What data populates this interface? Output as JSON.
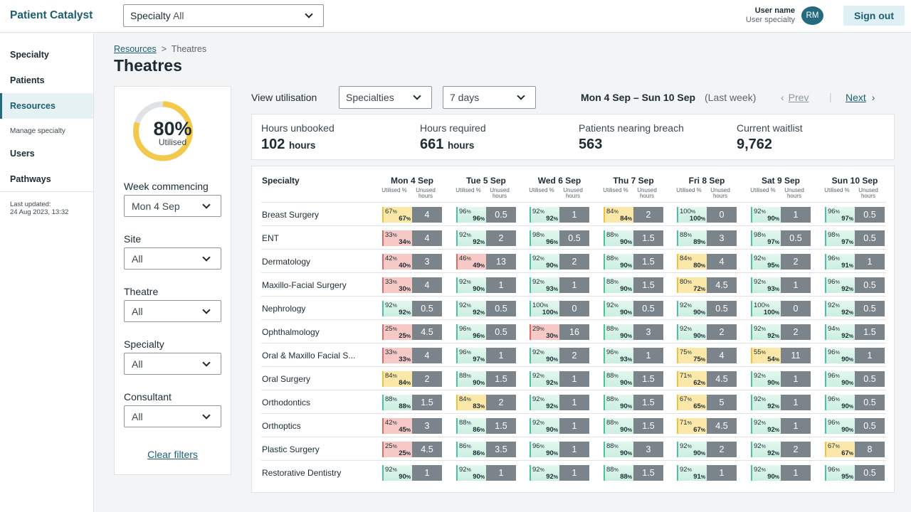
{
  "header": {
    "brand": "Patient Catalyst",
    "specialty_select": {
      "label": "Specialty",
      "value": "All"
    },
    "user_name": "User name",
    "user_specialty": "User specialty",
    "avatar_initials": "RM",
    "sign_out": "Sign out"
  },
  "sidebar": {
    "items": [
      "Specialty",
      "Patients",
      "Resources"
    ],
    "sub_item": "Manage specialty",
    "items2": [
      "Users",
      "Pathways"
    ],
    "last_updated_label": "Last updated:",
    "last_updated_value": "24 Aug 2023, 13:32"
  },
  "breadcrumb": {
    "parent": "Resources",
    "sep": ">",
    "current": "Theatres"
  },
  "page_title": "Theatres",
  "filters": {
    "utilised_pct": "80%",
    "utilised_fraction": 0.8,
    "utilised_label": "Utilised",
    "week_label": "Week commencing",
    "week_value": "Mon 4 Sep",
    "site_label": "Site",
    "site_value": "All",
    "theatre_label": "Theatre",
    "theatre_value": "All",
    "specialty_label": "Specialty",
    "specialty_value": "All",
    "consultant_label": "Consultant",
    "consultant_value": "All",
    "clear": "Clear filters"
  },
  "controls": {
    "view_label": "View utilisation",
    "view_value": "Specialties",
    "period_value": "7 days",
    "range": "Mon 4 Sep – Sun 10 Sep",
    "range_note": "(Last week)",
    "prev": "Prev",
    "next": "Next",
    "pipe": "|"
  },
  "stats": [
    {
      "label": "Hours unbooked",
      "value": "102",
      "unit": "hours"
    },
    {
      "label": "Hours required",
      "value": "661",
      "unit": "hours"
    },
    {
      "label": "Patients nearing breach",
      "value": "563",
      "unit": ""
    },
    {
      "label": "Current waitlist",
      "value": "9,762",
      "unit": ""
    }
  ],
  "table": {
    "specialty_header": "Specialty",
    "sub_header_util": "Utilised %",
    "sub_header_unused": "Unused hours",
    "days": [
      "Mon 4 Sep",
      "Tue 5 Sep",
      "Wed 6 Sep",
      "Thu 7 Sep",
      "Fri 8 Sep",
      "Sat 9 Sep",
      "Sun 10 Sep"
    ],
    "rows": [
      {
        "name": "Breast Surgery",
        "cells": [
          [
            "67",
            "67",
            "4",
            "y"
          ],
          [
            "96",
            "96",
            "0.5",
            "g"
          ],
          [
            "92",
            "92",
            "1",
            "g"
          ],
          [
            "84",
            "84",
            "2",
            "y"
          ],
          [
            "100",
            "100",
            "0",
            "g"
          ],
          [
            "92",
            "90",
            "1",
            "g"
          ],
          [
            "96",
            "97",
            "0.5",
            "g"
          ]
        ]
      },
      {
        "name": "ENT",
        "cells": [
          [
            "33",
            "34",
            "4",
            "r"
          ],
          [
            "92",
            "92",
            "2",
            "g"
          ],
          [
            "98",
            "96",
            "0.5",
            "g"
          ],
          [
            "88",
            "90",
            "1.5",
            "g"
          ],
          [
            "88",
            "89",
            "3",
            "g"
          ],
          [
            "98",
            "97",
            "0.5",
            "g"
          ],
          [
            "98",
            "97",
            "0.5",
            "g"
          ]
        ]
      },
      {
        "name": "Dermatology",
        "cells": [
          [
            "42",
            "40",
            "3",
            "r"
          ],
          [
            "46",
            "49",
            "13",
            "r"
          ],
          [
            "92",
            "90",
            "2",
            "g"
          ],
          [
            "88",
            "90",
            "1.5",
            "g"
          ],
          [
            "84",
            "80",
            "4",
            "y"
          ],
          [
            "92",
            "95",
            "2",
            "g"
          ],
          [
            "96",
            "91",
            "1",
            "g"
          ]
        ]
      },
      {
        "name": "Maxillo-Facial Surgery",
        "cells": [
          [
            "33",
            "30",
            "4",
            "r"
          ],
          [
            "92",
            "90",
            "1",
            "g"
          ],
          [
            "92",
            "93",
            "1",
            "g"
          ],
          [
            "88",
            "90",
            "1.5",
            "g"
          ],
          [
            "80",
            "72",
            "4.5",
            "y"
          ],
          [
            "92",
            "93",
            "1",
            "g"
          ],
          [
            "96",
            "92",
            "0.5",
            "g"
          ]
        ]
      },
      {
        "name": "Nephrology",
        "cells": [
          [
            "92",
            "92",
            "0.5",
            "g"
          ],
          [
            "92",
            "92",
            "0.5",
            "g"
          ],
          [
            "100",
            "100",
            "0",
            "g"
          ],
          [
            "92",
            "90",
            "0.5",
            "g"
          ],
          [
            "92",
            "90",
            "0.5",
            "g"
          ],
          [
            "100",
            "100",
            "0",
            "g"
          ],
          [
            "92",
            "92",
            "0.5",
            "g"
          ]
        ]
      },
      {
        "name": "Ophthalmology",
        "cells": [
          [
            "25",
            "25",
            "4.5",
            "r"
          ],
          [
            "96",
            "96",
            "0.5",
            "g"
          ],
          [
            "29",
            "30",
            "16",
            "r"
          ],
          [
            "88",
            "90",
            "3",
            "g"
          ],
          [
            "92",
            "90",
            "2",
            "g"
          ],
          [
            "92",
            "92",
            "2",
            "g"
          ],
          [
            "94",
            "92",
            "1.5",
            "g"
          ]
        ]
      },
      {
        "name": "Oral & Maxillo Facial S...",
        "cells": [
          [
            "33",
            "33",
            "4",
            "r"
          ],
          [
            "96",
            "97",
            "1",
            "g"
          ],
          [
            "92",
            "90",
            "2",
            "g"
          ],
          [
            "96",
            "93",
            "1",
            "g"
          ],
          [
            "75",
            "75",
            "4",
            "y"
          ],
          [
            "55",
            "54",
            "11",
            "y"
          ],
          [
            "96",
            "90",
            "1",
            "g"
          ]
        ]
      },
      {
        "name": "Oral Surgery",
        "cells": [
          [
            "84",
            "84",
            "2",
            "y"
          ],
          [
            "88",
            "90",
            "1.5",
            "g"
          ],
          [
            "92",
            "92",
            "1",
            "g"
          ],
          [
            "88",
            "90",
            "1.5",
            "g"
          ],
          [
            "71",
            "62",
            "4.5",
            "y"
          ],
          [
            "92",
            "90",
            "1",
            "g"
          ],
          [
            "96",
            "90",
            "0.5",
            "g"
          ]
        ]
      },
      {
        "name": "Orthodontics",
        "cells": [
          [
            "88",
            "88",
            "1.5",
            "g"
          ],
          [
            "84",
            "83",
            "2",
            "y"
          ],
          [
            "92",
            "92",
            "1",
            "g"
          ],
          [
            "88",
            "90",
            "1.5",
            "g"
          ],
          [
            "67",
            "65",
            "5",
            "y"
          ],
          [
            "92",
            "92",
            "1",
            "g"
          ],
          [
            "96",
            "90",
            "0.5",
            "g"
          ]
        ]
      },
      {
        "name": "Orthoptics",
        "cells": [
          [
            "42",
            "45",
            "3",
            "r"
          ],
          [
            "88",
            "86",
            "1.5",
            "g"
          ],
          [
            "92",
            "90",
            "1",
            "g"
          ],
          [
            "88",
            "90",
            "1.5",
            "g"
          ],
          [
            "71",
            "67",
            "4.5",
            "y"
          ],
          [
            "92",
            "92",
            "1",
            "g"
          ],
          [
            "96",
            "90",
            "0.5",
            "g"
          ]
        ]
      },
      {
        "name": "Plastic Surgery",
        "cells": [
          [
            "25",
            "25",
            "4.5",
            "r"
          ],
          [
            "86",
            "86",
            "3.5",
            "g"
          ],
          [
            "96",
            "90",
            "1",
            "g"
          ],
          [
            "88",
            "90",
            "3",
            "g"
          ],
          [
            "92",
            "90",
            "2",
            "g"
          ],
          [
            "92",
            "92",
            "2",
            "g"
          ],
          [
            "67",
            "67",
            "8",
            "y"
          ]
        ]
      },
      {
        "name": "Restorative Dentistry",
        "cells": [
          [
            "92",
            "90",
            "1",
            "g"
          ],
          [
            "92",
            "90",
            "1",
            "g"
          ],
          [
            "92",
            "92",
            "1",
            "g"
          ],
          [
            "88",
            "88",
            "1.5",
            "g"
          ],
          [
            "92",
            "91",
            "1",
            "g"
          ],
          [
            "92",
            "90",
            "1",
            "g"
          ],
          [
            "96",
            "95",
            "0.5",
            "g"
          ]
        ]
      }
    ]
  }
}
